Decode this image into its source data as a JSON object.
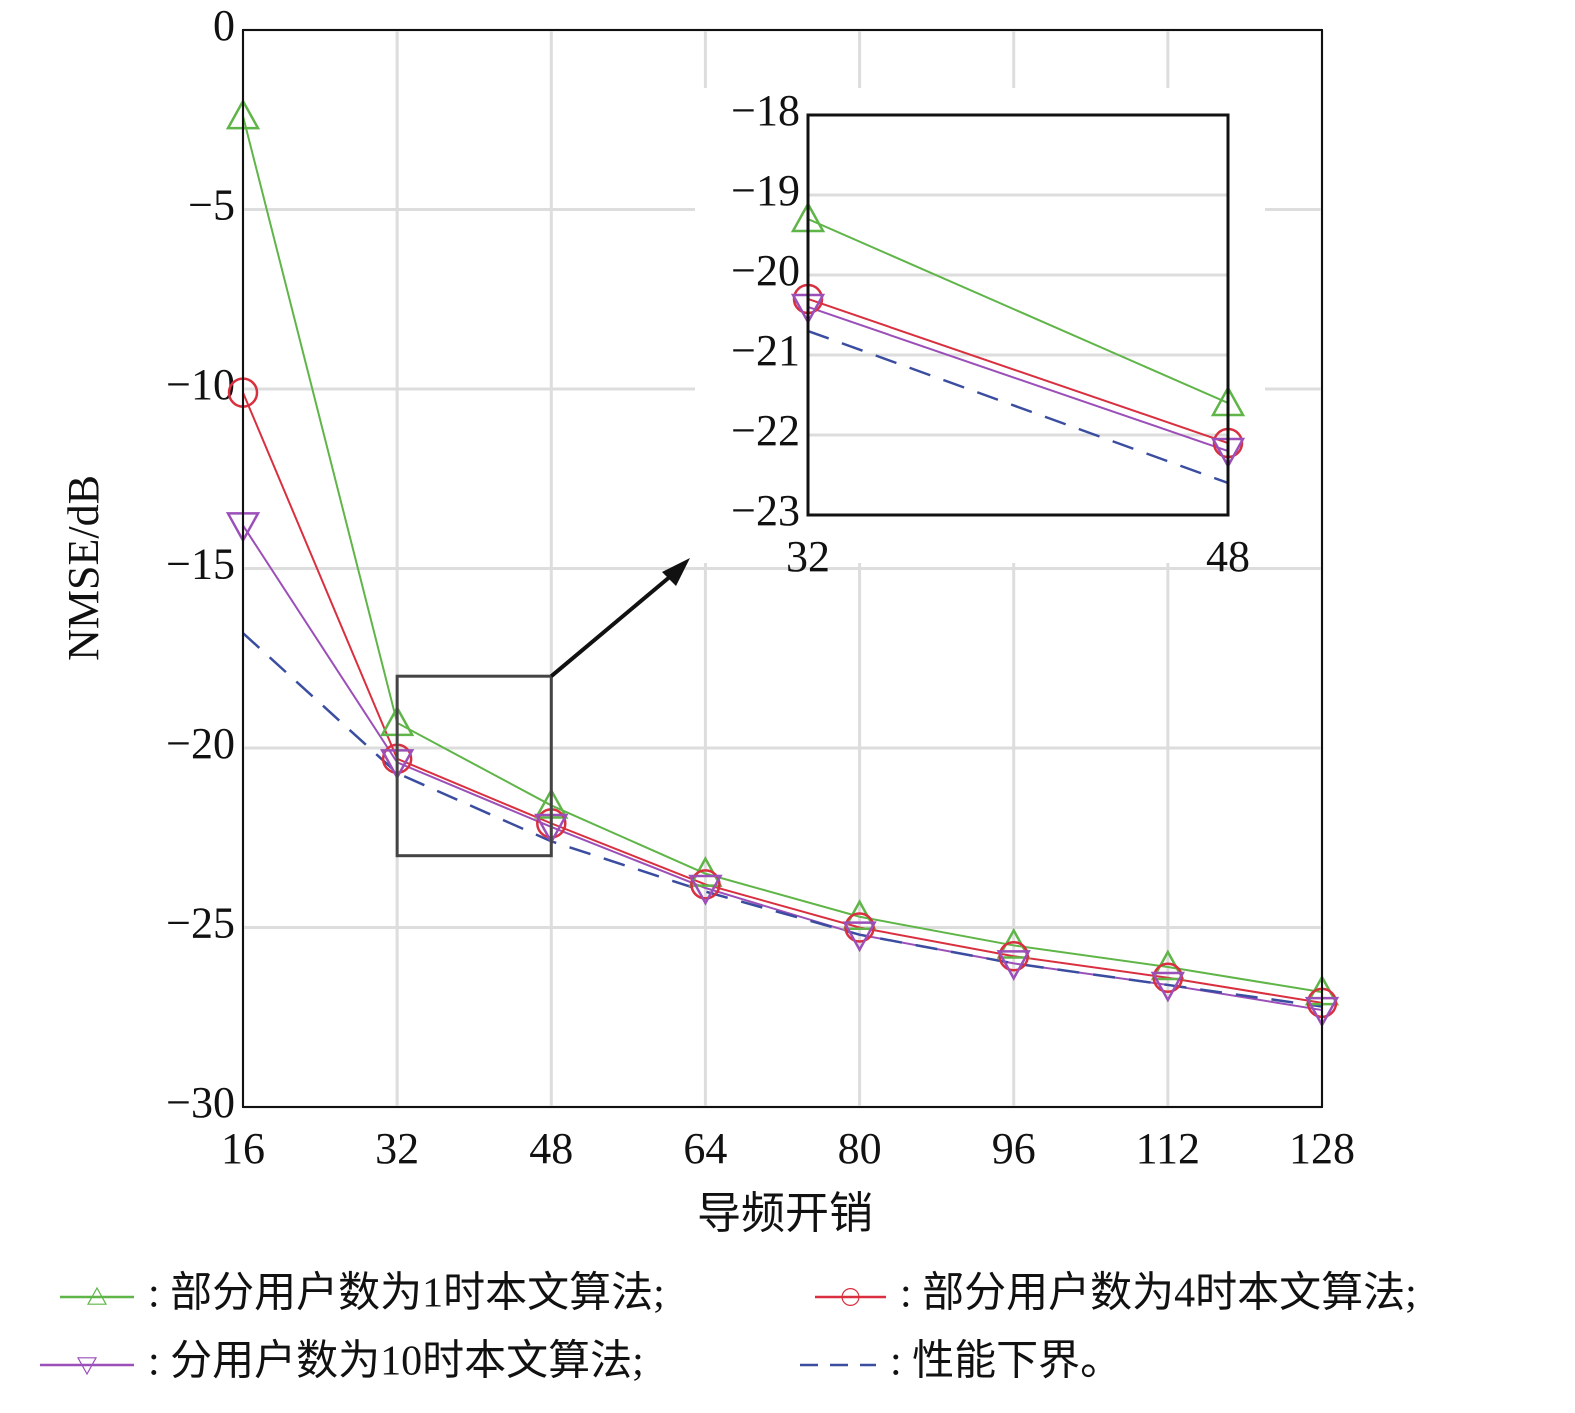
{
  "chart_data": {
    "type": "line",
    "xlabel": "导频开销",
    "ylabel": "NMSE/dB",
    "x": [
      16,
      32,
      48,
      64,
      80,
      96,
      112,
      128
    ],
    "xlim": [
      16,
      128
    ],
    "xticks": [
      16,
      32,
      48,
      64,
      80,
      96,
      112,
      128
    ],
    "ylim": [
      -30,
      0
    ],
    "yticks": [
      {
        "value": -30,
        "label": "−30"
      },
      {
        "value": -25,
        "label": "−25"
      },
      {
        "value": -20,
        "label": "−20"
      },
      {
        "value": -15,
        "label": "−15"
      },
      {
        "value": -10,
        "label": "−10"
      },
      {
        "value": -5,
        "label": "−5"
      },
      0
    ],
    "grid": true,
    "series": [
      {
        "name": ": 部分用户数为1时本文算法;",
        "color": "#5fb548",
        "marker": "triangle-up",
        "linestyle": "solid",
        "values": [
          -2.4,
          -19.3,
          -21.6,
          -23.5,
          -24.7,
          -25.5,
          -26.1,
          -26.8
        ]
      },
      {
        "name": ": 部分用户数为4时本文算法;",
        "color": "#d93040",
        "marker": "circle",
        "linestyle": "solid",
        "values": [
          -10.1,
          -20.3,
          -22.1,
          -23.8,
          -25.0,
          -25.8,
          -26.4,
          -27.1
        ]
      },
      {
        "name": ": 分用户数为10时本文算法;",
        "color": "#9b4fb8",
        "marker": "triangle-down",
        "linestyle": "solid",
        "values": [
          -13.8,
          -20.4,
          -22.2,
          -23.9,
          -25.2,
          -26.0,
          -26.6,
          -27.3
        ]
      },
      {
        "name": ": 性能下界。",
        "color": "#3a4da0",
        "marker": null,
        "linestyle": "dashed",
        "values": [
          -16.8,
          -20.7,
          -22.6,
          -24.0,
          -25.2,
          -26.0,
          -26.6,
          -27.2
        ]
      }
    ],
    "inset": {
      "xlim": [
        32,
        48
      ],
      "xticks": [
        32,
        48
      ],
      "ylim": [
        -23,
        -18
      ],
      "yticks": [
        {
          "value": -23,
          "label": "−23"
        },
        {
          "value": -22,
          "label": "−22"
        },
        {
          "value": -21,
          "label": "−21"
        },
        {
          "value": -20,
          "label": "−20"
        },
        {
          "value": -19,
          "label": "−19"
        },
        {
          "value": -18,
          "label": "−18"
        }
      ]
    }
  }
}
